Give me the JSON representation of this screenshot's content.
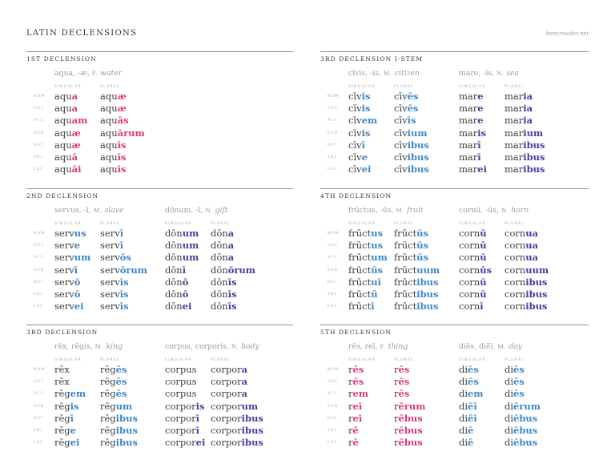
{
  "header": {
    "title": "LATIN DECLENSIONS",
    "site": "bencrowder.net"
  },
  "colors": {
    "stem": "#3d3d3d",
    "pink": "#e0357c",
    "blue": "#3b87c8",
    "purple": "#4b3aa0",
    "rule": "#8e8e8e",
    "label_gray": "#ababab"
  },
  "case_labels": [
    "NOM",
    "VOC",
    "ACC",
    "GEN",
    "DAT",
    "ABL",
    "LOC"
  ],
  "number_labels": {
    "singular": "SINGULAR",
    "plural": "PLURAL"
  },
  "sections": [
    {
      "title": "1ST DECLENSION",
      "nouns": [
        {
          "lemma": "aqua, -æ,",
          "gender": "F.",
          "meaning": "water",
          "ending_color": "pink",
          "singular": [
            [
              "aqu",
              "a"
            ],
            [
              "aqu",
              "a"
            ],
            [
              "aqu",
              "am"
            ],
            [
              "aqu",
              "æ"
            ],
            [
              "aqu",
              "æ"
            ],
            [
              "aqu",
              "ā"
            ],
            [
              "aqu",
              "āi"
            ]
          ],
          "plural": [
            [
              "aqu",
              "æ"
            ],
            [
              "aqu",
              "æ"
            ],
            [
              "aqu",
              "ās"
            ],
            [
              "aqu",
              "ārum"
            ],
            [
              "aqu",
              "īs"
            ],
            [
              "aqu",
              "īs"
            ],
            [
              "aqu",
              "īs"
            ]
          ]
        }
      ]
    },
    {
      "title": "2ND DECLENSION",
      "nouns": [
        {
          "lemma": "servus, -ī,",
          "gender": "M.",
          "meaning": "slave",
          "ending_color": "blue",
          "singular": [
            [
              "serv",
              "us"
            ],
            [
              "serv",
              "e"
            ],
            [
              "serv",
              "um"
            ],
            [
              "serv",
              "ī"
            ],
            [
              "serv",
              "ō"
            ],
            [
              "serv",
              "ō"
            ],
            [
              "serv",
              "ei"
            ]
          ],
          "plural": [
            [
              "serv",
              "ī"
            ],
            [
              "serv",
              "ī"
            ],
            [
              "serv",
              "ōs"
            ],
            [
              "serv",
              "ōrum"
            ],
            [
              "serv",
              "īs"
            ],
            [
              "serv",
              "īs"
            ],
            [
              "serv",
              "īs"
            ]
          ]
        },
        {
          "lemma": "dōnum, -ī,",
          "gender": "N.",
          "meaning": "gift",
          "ending_color": "purple",
          "singular": [
            [
              "dōn",
              "um"
            ],
            [
              "dōn",
              "um"
            ],
            [
              "dōn",
              "um"
            ],
            [
              "dōn",
              "ī"
            ],
            [
              "dōn",
              "ō"
            ],
            [
              "dōn",
              "ō"
            ],
            [
              "dōn",
              "ei"
            ]
          ],
          "plural": [
            [
              "dōn",
              "a"
            ],
            [
              "dōn",
              "a"
            ],
            [
              "dōn",
              "a"
            ],
            [
              "dōn",
              "ōrum"
            ],
            [
              "dōn",
              "īs"
            ],
            [
              "dōn",
              "īs"
            ],
            [
              "dōn",
              "īs"
            ]
          ]
        }
      ]
    },
    {
      "title": "3RD DECLENSION",
      "nouns": [
        {
          "lemma": "rēx, rēgis,",
          "gender": "M.",
          "meaning": "king",
          "ending_color": "blue",
          "singular": [
            [
              "rēx",
              ""
            ],
            [
              "rēx",
              ""
            ],
            [
              "rēg",
              "em"
            ],
            [
              "rēg",
              "is"
            ],
            [
              "rēg",
              "ī"
            ],
            [
              "rēg",
              "e"
            ],
            [
              "rēg",
              "ei"
            ]
          ],
          "plural": [
            [
              "rēg",
              "ēs"
            ],
            [
              "rēg",
              "ēs"
            ],
            [
              "rēg",
              "ēs"
            ],
            [
              "rēg",
              "um"
            ],
            [
              "rēg",
              "ibus"
            ],
            [
              "rēg",
              "ibus"
            ],
            [
              "rēg",
              "ibus"
            ]
          ]
        },
        {
          "lemma": "corpus, corporis,",
          "gender": "N.",
          "meaning": "body",
          "ending_color": "purple",
          "singular": [
            [
              "corpus",
              ""
            ],
            [
              "corpus",
              ""
            ],
            [
              "corpus",
              ""
            ],
            [
              "corpor",
              "is"
            ],
            [
              "corpor",
              "ī"
            ],
            [
              "corpor",
              "ī"
            ],
            [
              "corpor",
              "ei"
            ]
          ],
          "plural": [
            [
              "corpor",
              "a"
            ],
            [
              "corpor",
              "a"
            ],
            [
              "corpor",
              "a"
            ],
            [
              "corpor",
              "um"
            ],
            [
              "corpor",
              "ibus"
            ],
            [
              "corpor",
              "ibus"
            ],
            [
              "corpor",
              "ibus"
            ]
          ]
        }
      ]
    },
    {
      "title": "3RD DECLENSION I-STEM",
      "nouns": [
        {
          "lemma": "cīvis, -is,",
          "gender": "M.",
          "meaning": "citizen",
          "ending_color": "blue",
          "singular": [
            [
              "cīv",
              "is"
            ],
            [
              "cīv",
              "is"
            ],
            [
              "cīv",
              "em"
            ],
            [
              "cīv",
              "is"
            ],
            [
              "cīv",
              "ī"
            ],
            [
              "cīv",
              "e"
            ],
            [
              "cīv",
              "ei"
            ]
          ],
          "plural": [
            [
              "cīv",
              "ēs"
            ],
            [
              "cīv",
              "ēs"
            ],
            [
              "cīv",
              "īs"
            ],
            [
              "cīv",
              "ium"
            ],
            [
              "cīv",
              "ibus"
            ],
            [
              "cīv",
              "ibus"
            ],
            [
              "cīv",
              "ibus"
            ]
          ]
        },
        {
          "lemma": "mare, -is,",
          "gender": "N.",
          "meaning": "sea",
          "ending_color": "purple",
          "singular": [
            [
              "mar",
              "e"
            ],
            [
              "mar",
              "e"
            ],
            [
              "mar",
              "e"
            ],
            [
              "mar",
              "is"
            ],
            [
              "mar",
              "ī"
            ],
            [
              "mar",
              "ī"
            ],
            [
              "mar",
              "ei"
            ]
          ],
          "plural": [
            [
              "mar",
              "ia"
            ],
            [
              "mar",
              "ia"
            ],
            [
              "mar",
              "ia"
            ],
            [
              "mar",
              "ium"
            ],
            [
              "mar",
              "ibus"
            ],
            [
              "mar",
              "ibus"
            ],
            [
              "mar",
              "ibus"
            ]
          ]
        }
      ]
    },
    {
      "title": "4TH DECLENSION",
      "nouns": [
        {
          "lemma": "frūctus, -ūs,",
          "gender": "M.",
          "meaning": "fruit",
          "ending_color": "blue",
          "singular": [
            [
              "frūct",
              "us"
            ],
            [
              "frūct",
              "us"
            ],
            [
              "frūct",
              "um"
            ],
            [
              "frūct",
              "ūs"
            ],
            [
              "frūct",
              "uī"
            ],
            [
              "frūct",
              "ū"
            ],
            [
              "frūct",
              "ī"
            ]
          ],
          "plural": [
            [
              "frūct",
              "ūs"
            ],
            [
              "frūct",
              "ūs"
            ],
            [
              "frūct",
              "ūs"
            ],
            [
              "frūct",
              "uum"
            ],
            [
              "frūct",
              "ibus"
            ],
            [
              "frūct",
              "ibus"
            ],
            [
              "frūct",
              "ibus"
            ]
          ]
        },
        {
          "lemma": "cornū, -ūs,",
          "gender": "N.",
          "meaning": "horn",
          "ending_color": "purple",
          "singular": [
            [
              "corn",
              "ū"
            ],
            [
              "corn",
              "ū"
            ],
            [
              "corn",
              "ū"
            ],
            [
              "corn",
              "ūs"
            ],
            [
              "corn",
              "ū"
            ],
            [
              "corn",
              "ū"
            ],
            [
              "corn",
              "ī"
            ]
          ],
          "plural": [
            [
              "corn",
              "ua"
            ],
            [
              "corn",
              "ua"
            ],
            [
              "corn",
              "ua"
            ],
            [
              "corn",
              "uum"
            ],
            [
              "corn",
              "ibus"
            ],
            [
              "corn",
              "ibus"
            ],
            [
              "corn",
              "ibus"
            ]
          ]
        }
      ]
    },
    {
      "title": "5TH DECLENSION",
      "nouns": [
        {
          "lemma": "rēs, reī,",
          "gender": "F.",
          "meaning": "thing",
          "ending_color": "pink",
          "singular": [
            [
              "r",
              "ēs"
            ],
            [
              "r",
              "ēs"
            ],
            [
              "r",
              "em"
            ],
            [
              "r",
              "eī"
            ],
            [
              "r",
              "eī"
            ],
            [
              "r",
              "ē"
            ],
            [
              "r",
              "ē"
            ]
          ],
          "plural": [
            [
              "r",
              "ēs"
            ],
            [
              "r",
              "ēs"
            ],
            [
              "r",
              "ēs"
            ],
            [
              "r",
              "ērum"
            ],
            [
              "r",
              "ēbus"
            ],
            [
              "r",
              "ēbus"
            ],
            [
              "r",
              "ēbus"
            ]
          ]
        },
        {
          "lemma": "diēs, diēī,",
          "gender": "M.",
          "meaning": "day",
          "ending_color": "blue",
          "singular": [
            [
              "di",
              "ēs"
            ],
            [
              "di",
              "ēs"
            ],
            [
              "di",
              "em"
            ],
            [
              "di",
              "ēī"
            ],
            [
              "di",
              "ēī"
            ],
            [
              "di",
              "ē"
            ],
            [
              "di",
              "ē"
            ]
          ],
          "plural": [
            [
              "di",
              "ēs"
            ],
            [
              "di",
              "ēs"
            ],
            [
              "di",
              "ēs"
            ],
            [
              "di",
              "ērum"
            ],
            [
              "di",
              "ēbus"
            ],
            [
              "di",
              "ēbus"
            ],
            [
              "di",
              "ēbus"
            ]
          ]
        }
      ]
    }
  ]
}
